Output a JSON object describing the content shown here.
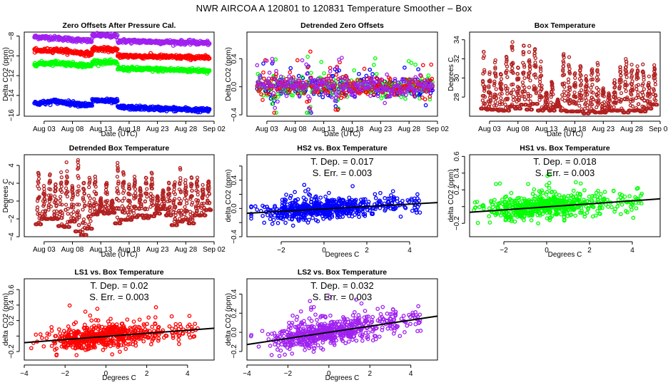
{
  "page_title": "NWR   AIRCOA A   120801 to 120831   Temperature Smoother – Box",
  "colors": {
    "ls2": "#a020f0",
    "ls1": "#ff0000",
    "hs1": "#00ff00",
    "hs2": "#0000ff",
    "box_temp": "#b22222",
    "fit_line": "#000000"
  },
  "chart_data": [
    {
      "id": "zero-offsets",
      "type": "scatter",
      "title": "Zero Offsets After Pressure Cal.",
      "xlabel": "Date (UTC)",
      "ylabel": "Delta CO2 (ppm)",
      "xticks": [
        "Aug 03",
        "Aug 08",
        "Aug 13",
        "Aug 18",
        "Aug 23",
        "Aug 28",
        "Sep 02"
      ],
      "xlim_days": [
        -1.5,
        32
      ],
      "ylim": [
        -16.1,
        -7.6
      ],
      "yticks": [
        -8,
        -10,
        -12,
        -14,
        -16
      ],
      "series": [
        {
          "name": "LS2",
          "color": "#a020f0",
          "levels": [
            [
              1,
              -8.1
            ],
            [
              4,
              -8.2
            ],
            [
              10,
              -8.5
            ],
            [
              11,
              -7.9
            ],
            [
              14.5,
              -8.0
            ],
            [
              15.5,
              -8.5
            ],
            [
              31,
              -8.7
            ]
          ]
        },
        {
          "name": "LS1",
          "color": "#ff0000",
          "levels": [
            [
              1,
              -9.5
            ],
            [
              4,
              -9.4
            ],
            [
              10,
              -9.8
            ],
            [
              11,
              -9.3
            ],
            [
              14.5,
              -9.4
            ],
            [
              15.5,
              -10.0
            ],
            [
              31,
              -10.2
            ]
          ]
        },
        {
          "name": "HS1",
          "color": "#00ff00",
          "levels": [
            [
              1,
              -10.8
            ],
            [
              4,
              -10.7
            ],
            [
              10,
              -11.0
            ],
            [
              11,
              -10.6
            ],
            [
              14.5,
              -10.7
            ],
            [
              15.5,
              -11.3
            ],
            [
              31,
              -11.5
            ]
          ]
        },
        {
          "name": "HS2",
          "color": "#0000ff",
          "levels": [
            [
              1,
              -14.8
            ],
            [
              4,
              -14.6
            ],
            [
              10,
              -15.0
            ],
            [
              11,
              -14.5
            ],
            [
              14.5,
              -14.6
            ],
            [
              15.5,
              -15.2
            ],
            [
              31,
              -15.5
            ]
          ]
        }
      ]
    },
    {
      "id": "detrended-zero-offsets",
      "type": "scatter",
      "title": "Detrended Zero Offsets",
      "xlabel": "Date (UTC)",
      "ylabel": "Delta CO2 (ppm)",
      "xticks": [
        "Aug 03",
        "Aug 08",
        "Aug 13",
        "Aug 18",
        "Aug 23",
        "Aug 28",
        "Sep 02"
      ],
      "xlim_days": [
        -1.5,
        32
      ],
      "ylim": [
        -0.42,
        0.78
      ],
      "yticks": [
        -0.4,
        0.0,
        0.4
      ],
      "yticklabels": [
        "-0.4",
        "0.0",
        "0.4"
      ],
      "series_colors": [
        "#0000ff",
        "#00ff00",
        "#ff0000",
        "#a020f0"
      ],
      "range": [
        -0.2,
        0.15
      ]
    },
    {
      "id": "box-temperature",
      "type": "scatter",
      "title": "Box Temperature",
      "xlabel": "Date (UTC)",
      "ylabel": "Degrees C",
      "xticks": [
        "Aug 03",
        "Aug 08",
        "Aug 13",
        "Aug 18",
        "Aug 23",
        "Aug 28",
        "Sep 02"
      ],
      "xlim_days": [
        -1.5,
        32
      ],
      "ylim": [
        26,
        34.8
      ],
      "yticks": [
        28,
        30,
        32,
        34
      ],
      "daily_max": [
        33.0,
        31.0,
        32.3,
        30.7,
        32.5,
        34.5,
        31.3,
        33.7,
        33.5,
        33.7,
        32.0,
        28.7,
        30.1,
        27.8,
        33.1,
        32.2,
        30.7,
        31.7,
        30.4,
        31.5,
        31.7,
        29.0,
        28.8,
        30.0,
        31.7,
        32.9,
        31.5,
        32.1,
        31.7,
        30.3,
        31.7
      ],
      "daily_min": [
        26.8,
        26.7,
        26.7,
        26.6,
        26.6,
        27.0,
        26.8,
        27.2,
        26.7,
        27.3,
        26.6,
        26.8,
        26.6,
        27.0,
        26.6,
        26.5,
        26.5,
        26.5,
        26.3,
        26.5,
        26.4,
        26.4,
        26.6,
        26.6,
        26.6,
        26.4,
        26.6,
        26.6,
        26.5,
        26.8,
        27.2
      ]
    },
    {
      "id": "detrended-box-temperature",
      "type": "scatter",
      "title": "Detrended Box Temperature",
      "xlabel": "Date (UTC)",
      "ylabel": "Degrees C",
      "xticks": [
        "Aug 03",
        "Aug 08",
        "Aug 13",
        "Aug 18",
        "Aug 23",
        "Aug 28",
        "Sep 02"
      ],
      "xlim_days": [
        -1.5,
        32
      ],
      "ylim": [
        -4,
        5.2
      ],
      "yticks": [
        -4,
        -2,
        0,
        2,
        4
      ],
      "daily_max": [
        3.6,
        2.2,
        3.4,
        2.1,
        3.7,
        5.0,
        1.9,
        4.7,
        3.0,
        3.3,
        3.4,
        0.5,
        2.4,
        0.2,
        4.6,
        3.8,
        2.2,
        3.1,
        1.9,
        3.4,
        3.4,
        0.8,
        1.5,
        2.3,
        3.2,
        3.8,
        2.7,
        3.3,
        2.9,
        2.0,
        2.8
      ],
      "daily_min": [
        -2.6,
        -2.0,
        -2.0,
        -2.0,
        -2.8,
        -2.9,
        -2.3,
        -3.4,
        -3.8,
        -3.1,
        -1.5,
        -1.2,
        -1.4,
        -1.3,
        -2.5,
        -2.1,
        -2.1,
        -1.8,
        -1.6,
        -1.9,
        -1.7,
        -1.4,
        -0.9,
        -1.6,
        -2.7,
        -2.3,
        -2.1,
        -2.5,
        -1.6,
        -1.6,
        -1.0
      ]
    },
    {
      "id": "hs2-vs-box",
      "type": "scatter",
      "title": "HS2 vs. Box Temperature",
      "xlabel": "Degrees C",
      "ylabel": "delta CO2 (ppm)",
      "color": "#0000ff",
      "xlim": [
        -3.6,
        5.3
      ],
      "ylim": [
        -0.4,
        0.76
      ],
      "xticks": [
        -2,
        0,
        2,
        4
      ],
      "yticks": [
        -0.4,
        -0.2,
        0.0,
        0.2,
        0.4,
        0.6
      ],
      "yticklabels": [
        "-0.4",
        "",
        "0.0",
        "",
        "0.4",
        ""
      ],
      "annotation": {
        "tdep_label": "T. Dep. =  0.017",
        "serr_label": "S. Err. =  0.003"
      },
      "fit": {
        "slope": 0.017,
        "intercept": -0.007
      }
    },
    {
      "id": "hs1-vs-box",
      "type": "scatter",
      "title": "HS1 vs. Box Temperature",
      "xlabel": "Degrees C",
      "ylabel": "delta CO2 (ppm)",
      "color": "#00ff00",
      "xlim": [
        -3.6,
        5.3
      ],
      "ylim": [
        -0.36,
        0.62
      ],
      "xticks": [
        -2,
        0,
        2,
        4
      ],
      "yticks": [
        -0.2,
        0.2,
        0.4,
        0.6
      ],
      "yticklabels": [
        "-0.2",
        "0.2",
        "0.4",
        "0.6"
      ],
      "minor_yticks": [
        0.0
      ],
      "annotation": {
        "tdep_label": "T. Dep. =  0.018",
        "serr_label": "S. Err. =  0.003"
      },
      "fit": {
        "slope": 0.018,
        "intercept": -0.003
      }
    },
    {
      "id": "ls1-vs-box",
      "type": "scatter",
      "title": "LS1 vs. Box Temperature",
      "xlabel": "Degrees C",
      "ylabel": "delta CO2 (ppm)",
      "color": "#ff0000",
      "xlim": [
        -4,
        5.3
      ],
      "ylim": [
        -0.31,
        0.74
      ],
      "xticks": [
        -4,
        -2,
        0,
        2,
        4
      ],
      "yticks": [
        -0.2,
        0.2,
        0.4,
        0.6
      ],
      "yticklabels": [
        "-0.2",
        "0.2",
        "0.4",
        "0.6"
      ],
      "minor_yticks": [
        0.0
      ],
      "annotation": {
        "tdep_label": "T. Dep. =  0.02",
        "serr_label": "S. Err. =  0.003"
      },
      "fit": {
        "slope": 0.02,
        "intercept": -0.005
      }
    },
    {
      "id": "ls2-vs-box",
      "type": "scatter",
      "title": "LS2 vs. Box Temperature",
      "xlabel": "Degrees C",
      "ylabel": "delta CO2 (ppm)",
      "color": "#a020f0",
      "xlim": [
        -4,
        5.3
      ],
      "ylim": [
        -0.29,
        0.56
      ],
      "xticks": [
        -4,
        -2,
        0,
        2,
        4
      ],
      "yticks": [
        -0.2,
        0.0,
        0.2,
        0.4
      ],
      "yticklabels": [
        "-0.2",
        "0.0",
        "0.2",
        "0.4"
      ],
      "annotation": {
        "tdep_label": "T. Dep. =  0.032",
        "serr_label": "S. Err. =  0.003"
      },
      "fit": {
        "slope": 0.032,
        "intercept": 0.0
      }
    }
  ],
  "point_rendering": {
    "method": "synthetic",
    "description": "Individual data points are not transcribed from the image. The rendered points are pseudo-random (seeded PRNG) samples placed around the levels, ranges, and fit lines recorded above, to reproduce the visual density of each panel. Only the titles, axis labels, tick labels, axis ranges, annotations, and listed levels/extremes are read from the screenshot."
  }
}
